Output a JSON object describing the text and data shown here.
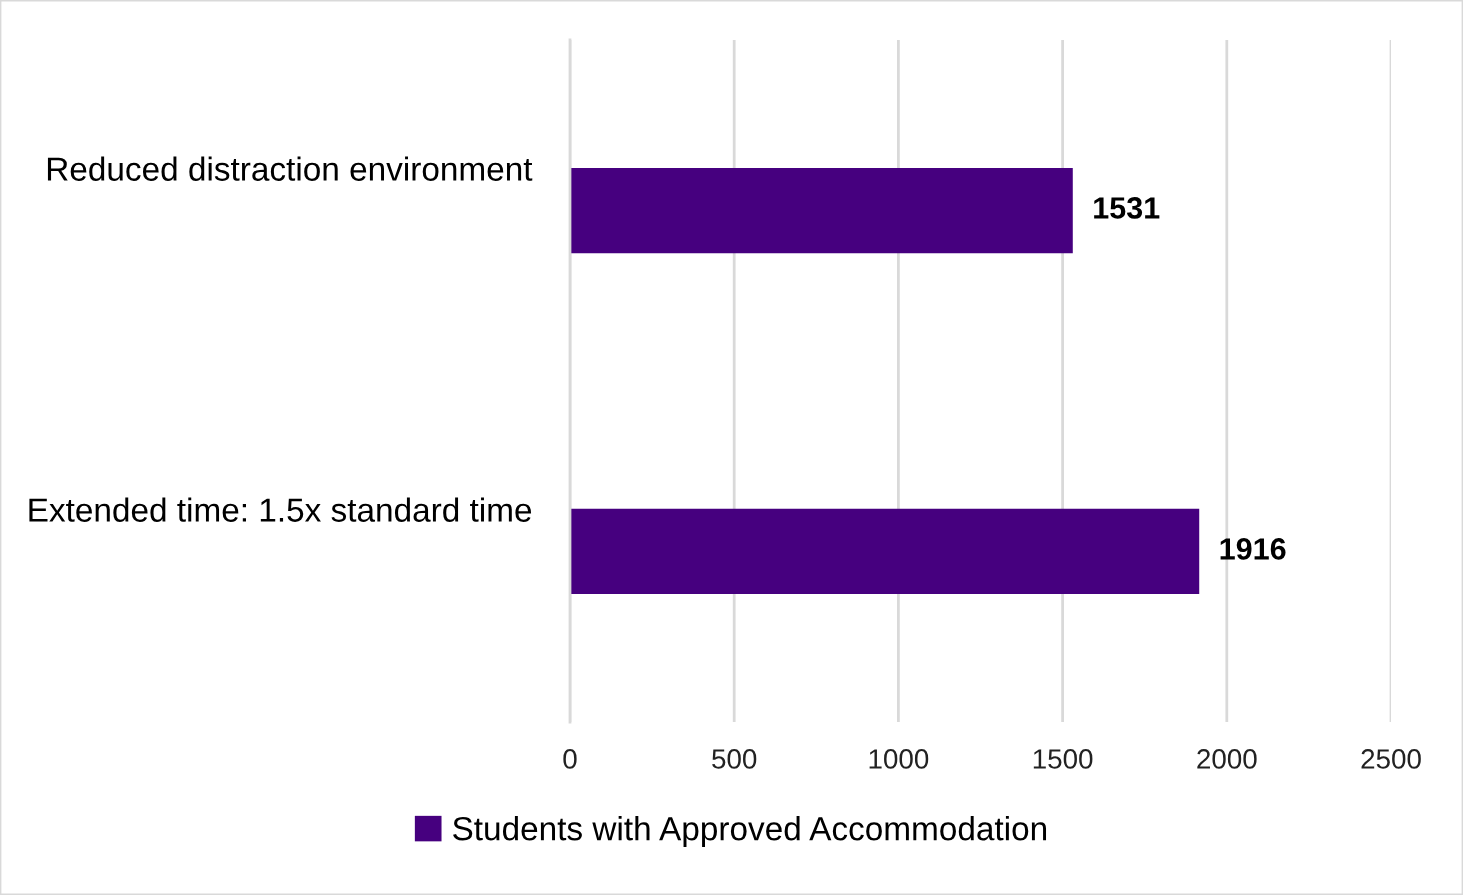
{
  "chart_data": {
    "type": "bar",
    "orientation": "horizontal",
    "categories": [
      "Reduced distraction environment",
      "Extended time: 1.5x standard time"
    ],
    "series": [
      {
        "name": "Students with Approved Accommodation",
        "color": "#46007f",
        "values": [
          1531,
          1916
        ]
      }
    ],
    "xlim": [
      0,
      2500
    ],
    "xticks": [
      0,
      500,
      1000,
      1500,
      2000,
      2500
    ],
    "grid": "x",
    "legend": "bottom",
    "data_labels": true
  }
}
